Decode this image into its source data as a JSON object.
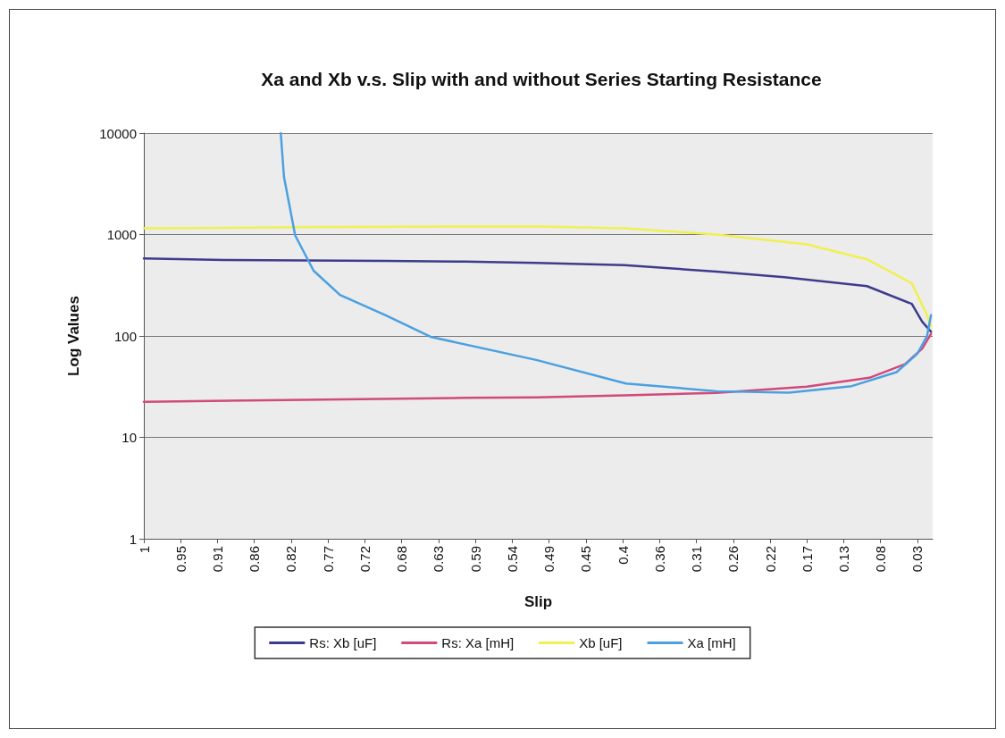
{
  "chart_data": {
    "type": "line",
    "title": "Xa and Xb v.s. Slip with and without Series Starting Resistance",
    "xlabel": "Slip",
    "ylabel": "Log Values",
    "xlim": [
      1,
      0.015
    ],
    "xticks": [
      1,
      {
        "value": 0.954,
        "label": "0.95"
      },
      {
        "value": 0.908,
        "label": "0.91"
      },
      {
        "value": 0.862,
        "label": "0.86"
      },
      {
        "value": 0.816,
        "label": "0.82"
      },
      {
        "value": 0.77,
        "label": "0.77"
      },
      {
        "value": 0.724,
        "label": "0.72"
      },
      {
        "value": 0.678,
        "label": "0.68"
      },
      {
        "value": 0.632,
        "label": "0.63"
      },
      {
        "value": 0.586,
        "label": "0.59"
      },
      {
        "value": 0.54,
        "label": "0.54"
      },
      {
        "value": 0.494,
        "label": "0.49"
      },
      {
        "value": 0.448,
        "label": "0.45"
      },
      {
        "value": 0.402,
        "label": "0.4"
      },
      {
        "value": 0.356,
        "label": "0.36"
      },
      {
        "value": 0.31,
        "label": "0.31"
      },
      {
        "value": 0.264,
        "label": "0.26"
      },
      {
        "value": 0.218,
        "label": "0.22"
      },
      {
        "value": 0.172,
        "label": "0.17"
      },
      {
        "value": 0.126,
        "label": "0.13"
      },
      {
        "value": 0.08,
        "label": "0.08"
      },
      {
        "value": 0.034,
        "label": "0.03"
      }
    ],
    "ylim": [
      1,
      10000
    ],
    "yticks": [
      1,
      10,
      100,
      1000,
      10000
    ],
    "log": "y",
    "grid": "y",
    "legend": "bottom",
    "marker": "none",
    "line_style": "solid",
    "series": [
      {
        "name": "Rs: Xb [uF]",
        "color": "#3c3c8c",
        "x": [
          1,
          0.9,
          0.8,
          0.7,
          0.6,
          0.51,
          0.4,
          0.285,
          0.2,
          0.097,
          0.041,
          0.028,
          0.017
        ],
        "values": [
          580,
          560,
          555,
          550,
          540,
          524,
          500,
          430,
          380,
          310,
          207,
          138,
          110
        ]
      },
      {
        "name": "Rs: Xa [mH]",
        "color": "#d04a7a",
        "x": [
          1,
          0.8,
          0.6,
          0.51,
          0.4,
          0.285,
          0.172,
          0.094,
          0.049,
          0.028,
          0.017
        ],
        "values": [
          22.4,
          23.5,
          24.5,
          24.8,
          26,
          27.4,
          31.6,
          38.7,
          53,
          75,
          105
        ]
      },
      {
        "name": "Xb [uF]",
        "color": "#f0f050",
        "x": [
          1,
          0.8,
          0.6,
          0.51,
          0.4,
          0.285,
          0.172,
          0.097,
          0.041,
          0.022,
          0.017
        ],
        "values": [
          1150,
          1180,
          1200,
          1200,
          1150,
          1000,
          800,
          570,
          330,
          160,
          125
        ]
      },
      {
        "name": "Xa [mH]",
        "color": "#4aa0e0",
        "x": [
          0.829,
          0.825,
          0.811,
          0.788,
          0.755,
          0.698,
          0.642,
          0.51,
          0.398,
          0.285,
          0.195,
          0.116,
          0.06,
          0.034,
          0.022,
          0.017
        ],
        "values": [
          10000,
          3700,
          980,
          440,
          254,
          160,
          98,
          58,
          34,
          28.5,
          27.6,
          32,
          44,
          67,
          100,
          160
        ]
      }
    ]
  }
}
